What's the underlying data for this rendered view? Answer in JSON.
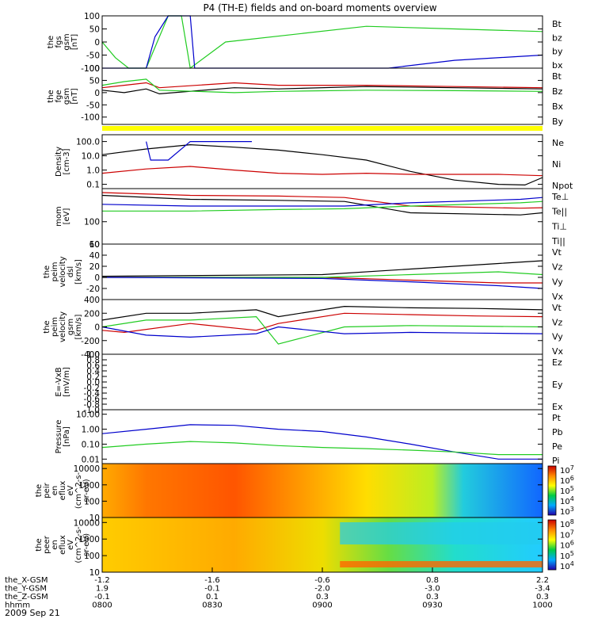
{
  "title": "P4 (TH-E) fields and on-board moments overview",
  "date": "2009 Sep 21",
  "colors": {
    "black": "#000000",
    "red": "#cc0000",
    "green": "#22cc22",
    "blue": "#0000cc",
    "yellow": "#ffff00"
  },
  "chart_data": {
    "type": "line",
    "x_ticks": {
      "rows": [
        {
          "label": "the_X-GSM",
          "values": [
            "-1.2",
            "-1.6",
            "-0.6",
            "0.8",
            "2.2"
          ]
        },
        {
          "label": "the_Y-GSM",
          "values": [
            "1.9",
            "-0.1",
            "-2.0",
            "-3.0",
            "-3.4"
          ]
        },
        {
          "label": "the_Z-GSM",
          "values": [
            "-0.1",
            "0.1",
            "0.3",
            "0.3",
            "0.3"
          ]
        },
        {
          "label": "hhmm",
          "values": [
            "0800",
            "0830",
            "0900",
            "0930",
            "1000"
          ]
        }
      ]
    },
    "panels": [
      {
        "id": "fgs",
        "ylabel": [
          "the",
          "fgs",
          "gsm",
          "[nT]"
        ],
        "ylim": [
          -100,
          100
        ],
        "ticks": [
          "100",
          "50",
          "0",
          "-50",
          "-100"
        ],
        "legend": [
          {
            "name": "Bt",
            "color": "#000000"
          },
          {
            "name": "bz",
            "color": "#cc0000"
          },
          {
            "name": "by",
            "color": "#22cc22"
          },
          {
            "name": "bx",
            "color": "#0000cc"
          }
        ],
        "series": [
          {
            "name": "by",
            "color": "#22cc22",
            "x": [
              0,
              3,
              6,
              10,
              15,
              18,
              20,
              28,
              60,
              80,
              100
            ],
            "y": [
              0,
              -60,
              -100,
              -100,
              100,
              100,
              -100,
              0,
              60,
              50,
              40
            ]
          },
          {
            "name": "bx",
            "color": "#0000cc",
            "x": [
              0,
              10,
              12,
              15,
              20,
              21,
              65,
              80,
              100
            ],
            "y": [
              -100,
              -100,
              20,
              100,
              100,
              -100,
              -100,
              -70,
              -50
            ]
          }
        ]
      },
      {
        "id": "fge",
        "ylabel": [
          "the",
          "fge",
          "gsm",
          "[nT]"
        ],
        "ylim": [
          -130,
          100
        ],
        "ticks": [
          "100",
          "50",
          "0",
          "-50",
          "-100"
        ],
        "legend": [
          {
            "name": "Bt",
            "color": "#000000"
          },
          {
            "name": "Bz",
            "color": "#cc0000"
          },
          {
            "name": "Bx",
            "color": "#22cc22"
          },
          {
            "name": "By",
            "color": "#0000cc"
          }
        ],
        "series": [
          {
            "name": "Bt",
            "color": "#000000",
            "x": [
              0,
              5,
              10,
              13,
              30,
              40,
              60,
              80,
              100
            ],
            "y": [
              10,
              0,
              15,
              -5,
              20,
              15,
              25,
              20,
              15
            ]
          },
          {
            "name": "Bz",
            "color": "#cc0000",
            "x": [
              0,
              5,
              10,
              13,
              30,
              40,
              60,
              80,
              100
            ],
            "y": [
              20,
              30,
              40,
              20,
              40,
              30,
              30,
              25,
              20
            ]
          },
          {
            "name": "Bx",
            "color": "#22cc22",
            "x": [
              0,
              5,
              10,
              13,
              30,
              40,
              60,
              80,
              100
            ],
            "y": [
              30,
              45,
              55,
              10,
              0,
              5,
              10,
              8,
              5
            ]
          }
        ],
        "band_color": "#ffff00"
      },
      {
        "id": "density",
        "ylabel": [
          "Density",
          "[cm-3]"
        ],
        "ylim": [
          0.05,
          300
        ],
        "log": true,
        "ticks": [
          "100.0",
          "10.0",
          "1.0",
          "0.1"
        ],
        "legend": [
          {
            "name": "Ne",
            "color": "#cc0000"
          },
          {
            "name": "Ni",
            "color": "#000000"
          },
          {
            "name": "Npot",
            "color": "#0000cc"
          }
        ],
        "series": [
          {
            "name": "Ni",
            "color": "#000000",
            "x": [
              0,
              10,
              20,
              30,
              40,
              50,
              60,
              70,
              80,
              90,
              96,
              100
            ],
            "y": [
              12,
              30,
              60,
              40,
              25,
              12,
              5,
              0.8,
              0.2,
              0.1,
              0.09,
              0.3
            ]
          },
          {
            "name": "Npot",
            "color": "#0000cc",
            "x": [
              10,
              11,
              15,
              20,
              32,
              34
            ],
            "y": [
              100,
              5,
              5,
              100,
              100,
              100
            ]
          },
          {
            "name": "Ne",
            "color": "#cc0000",
            "x": [
              0,
              10,
              20,
              30,
              40,
              50,
              60,
              70,
              80,
              90,
              100
            ],
            "y": [
              0.6,
              1.2,
              1.8,
              1.0,
              0.6,
              0.5,
              0.6,
              0.5,
              0.5,
              0.5,
              0.4
            ]
          }
        ]
      },
      {
        "id": "mom",
        "ylabel": [
          "mom",
          "[eV]"
        ],
        "ylim": [
          10,
          3000
        ],
        "log": true,
        "ticks": [
          "100",
          "10"
        ],
        "legend": [
          {
            "name": "Te⊥",
            "color": "#cc0000"
          },
          {
            "name": "Te||",
            "color": "#000000"
          },
          {
            "name": "Ti⊥",
            "color": "#0000cc"
          },
          {
            "name": "Ti||",
            "color": "#22cc22"
          }
        ],
        "series": [
          {
            "name": "Te⊥",
            "color": "#cc0000",
            "x": [
              0,
              20,
              40,
              55,
              70,
              95,
              100
            ],
            "y": [
              2000,
              1500,
              1400,
              1200,
              500,
              400,
              420
            ]
          },
          {
            "name": "Te||",
            "color": "#000000",
            "x": [
              0,
              20,
              40,
              55,
              70,
              95,
              100
            ],
            "y": [
              1500,
              1000,
              900,
              800,
              250,
              200,
              250
            ]
          },
          {
            "name": "Ti⊥",
            "color": "#0000cc",
            "x": [
              0,
              20,
              40,
              55,
              70,
              95,
              100
            ],
            "y": [
              600,
              500,
              500,
              500,
              700,
              1000,
              1200
            ]
          },
          {
            "name": "Ti||",
            "color": "#22cc22",
            "x": [
              0,
              20,
              40,
              55,
              70,
              95,
              100
            ],
            "y": [
              300,
              300,
              350,
              380,
              500,
              700,
              800
            ]
          }
        ]
      },
      {
        "id": "vel_dsl",
        "ylabel": [
          "the",
          "peim",
          "velocity",
          "dsl",
          "[km/s]"
        ],
        "ylim": [
          -40,
          60
        ],
        "ticks": [
          "60",
          "40",
          "20",
          "0",
          "-20"
        ],
        "legend": [
          {
            "name": "Vt",
            "color": "#000000"
          },
          {
            "name": "Vz",
            "color": "#cc0000"
          },
          {
            "name": "Vy",
            "color": "#22cc22"
          },
          {
            "name": "Vx",
            "color": "#0000cc"
          }
        ],
        "series": [
          {
            "name": "Vt",
            "color": "#000000",
            "x": [
              0,
              50,
              70,
              90,
              100
            ],
            "y": [
              2,
              5,
              15,
              25,
              30
            ]
          },
          {
            "name": "Vz",
            "color": "#cc0000",
            "x": [
              0,
              50,
              70,
              90,
              100
            ],
            "y": [
              0,
              0,
              -5,
              -10,
              -10
            ]
          },
          {
            "name": "Vy",
            "color": "#22cc22",
            "x": [
              0,
              50,
              70,
              90,
              100
            ],
            "y": [
              0,
              0,
              5,
              10,
              5
            ]
          },
          {
            "name": "Vx",
            "color": "#0000cc",
            "x": [
              0,
              50,
              70,
              90,
              100
            ],
            "y": [
              0,
              -2,
              -8,
              -15,
              -20
            ]
          }
        ]
      },
      {
        "id": "vel_gsm",
        "ylabel": [
          "the",
          "peim",
          "velocity",
          "gsm",
          "[km/s]"
        ],
        "ylim": [
          -400,
          400
        ],
        "ticks": [
          "400",
          "200",
          "0",
          "-200",
          "-400"
        ],
        "legend": [
          {
            "name": "Vt",
            "color": "#000000"
          },
          {
            "name": "Vz",
            "color": "#cc0000"
          },
          {
            "name": "Vy",
            "color": "#22cc22"
          },
          {
            "name": "Vx",
            "color": "#0000cc"
          }
        ],
        "series": [
          {
            "name": "Vt",
            "color": "#000000",
            "x": [
              0,
              10,
              20,
              35,
              40,
              55,
              70,
              85,
              100
            ],
            "y": [
              100,
              200,
              200,
              250,
              150,
              300,
              280,
              270,
              250
            ]
          },
          {
            "name": "Vz",
            "color": "#cc0000",
            "x": [
              0,
              5,
              20,
              35,
              40,
              55,
              70,
              85,
              100
            ],
            "y": [
              -50,
              -80,
              50,
              -50,
              50,
              200,
              180,
              160,
              150
            ]
          },
          {
            "name": "Vy",
            "color": "#22cc22",
            "x": [
              0,
              10,
              20,
              35,
              40,
              55,
              70,
              85,
              100
            ],
            "y": [
              0,
              100,
              100,
              150,
              -250,
              0,
              20,
              10,
              0
            ]
          },
          {
            "name": "Vx",
            "color": "#0000cc",
            "x": [
              0,
              10,
              20,
              35,
              40,
              55,
              70,
              85,
              100
            ],
            "y": [
              0,
              -120,
              -150,
              -100,
              0,
              -100,
              -80,
              -90,
              -100
            ]
          }
        ]
      },
      {
        "id": "efield",
        "ylabel": [
          "E=-VxB",
          "[mV/m]"
        ],
        "ylim": [
          -1,
          1
        ],
        "ticks": [
          "1.0",
          "0.8",
          "0.6",
          "0.4",
          "0.2",
          "0.0",
          "-0.2",
          "-0.4",
          "-0.6",
          "-0.8",
          "-1.0"
        ],
        "legend": [
          {
            "name": "Ez",
            "color": "#cc0000"
          },
          {
            "name": "Ey",
            "color": "#22cc22"
          },
          {
            "name": "Ex",
            "color": "#0000cc"
          }
        ],
        "series": []
      },
      {
        "id": "pressure",
        "ylabel": [
          "Pressure",
          "[nPa]"
        ],
        "ylim": [
          0.005,
          20
        ],
        "log": true,
        "ticks": [
          "10.00",
          "1.00",
          "0.10",
          "0.01"
        ],
        "legend": [
          {
            "name": "Pt",
            "color": "#000000"
          },
          {
            "name": "Pb",
            "color": "#cc0000"
          },
          {
            "name": "Pe",
            "color": "#22cc22"
          },
          {
            "name": "Pi",
            "color": "#0000cc"
          }
        ],
        "series": [
          {
            "name": "Pi",
            "color": "#0000cc",
            "x": [
              0,
              10,
              20,
              30,
              40,
              50,
              60,
              70,
              80,
              90,
              100
            ],
            "y": [
              0.5,
              1.0,
              2.0,
              1.8,
              1.0,
              0.7,
              0.3,
              0.1,
              0.03,
              0.01,
              0.01
            ]
          },
          {
            "name": "Pe",
            "color": "#22cc22",
            "x": [
              0,
              10,
              20,
              30,
              40,
              50,
              60,
              70,
              80,
              90,
              100
            ],
            "y": [
              0.06,
              0.1,
              0.15,
              0.12,
              0.08,
              0.06,
              0.05,
              0.04,
              0.03,
              0.02,
              0.02
            ]
          }
        ]
      },
      {
        "id": "peir",
        "type": "heatmap",
        "ylabel": [
          "the",
          "peir",
          "en",
          "eflux",
          "eV",
          "(cm^2-s-",
          "sr-eV)"
        ],
        "ylim": [
          10,
          20000
        ],
        "log": true,
        "ticks": [
          "10000",
          "1000",
          "100",
          "10"
        ],
        "colorbar_ticks": [
          "10^7",
          "10^6",
          "10^5",
          "10^4",
          "10^3"
        ]
      },
      {
        "id": "peer",
        "type": "heatmap",
        "ylabel": [
          "the",
          "peer",
          "en",
          "eflux",
          "eV",
          "(cm^2-s-",
          "sr-eV)"
        ],
        "ylim": [
          10,
          20000
        ],
        "log": true,
        "ticks": [
          "10000",
          "1000",
          "100",
          "10"
        ],
        "colorbar_ticks": [
          "10^8",
          "10^7",
          "10^6",
          "10^5",
          "10^4"
        ]
      }
    ]
  }
}
